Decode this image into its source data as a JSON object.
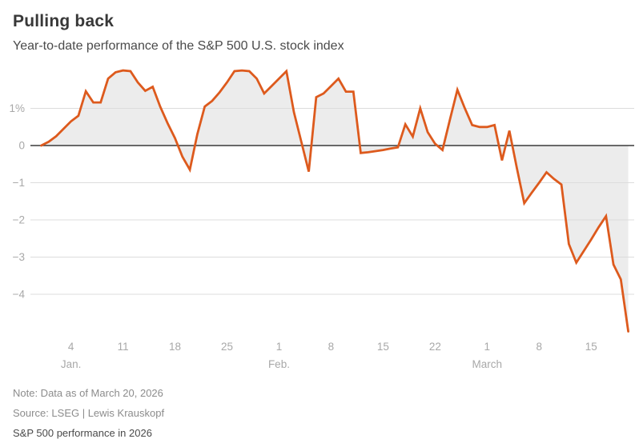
{
  "header": {
    "title": "Pulling back",
    "subtitle": "Year-to-date performance of the S&P 500 U.S. stock index"
  },
  "footer": {
    "note": "Note: Data as of March 20, 2026",
    "source": "Source: LSEG | Lewis Krauskopf",
    "tagline": "S&P 500 performance in 2026"
  },
  "colors": {
    "line": "#DD5A1D",
    "area_fill": "#ECECEC",
    "zero_axis": "#3a3a3a",
    "gridline": "#dcdcdc",
    "tick_label": "#a8a8a8",
    "title_text": "#383838",
    "note_text": "#8c8c8c"
  },
  "chart_data": {
    "type": "area",
    "title": "Pulling back",
    "subtitle": "Year-to-date performance of the S&P 500 U.S. stock index",
    "unit": "percent",
    "ylabel": "",
    "xlabel": "",
    "ylim": [
      -5.2,
      2.2
    ],
    "grid": true,
    "legend": "none",
    "y_ticks": [
      {
        "value": 1,
        "label": "1%"
      },
      {
        "value": 0,
        "label": "0"
      },
      {
        "value": -1,
        "label": "−1"
      },
      {
        "value": -2,
        "label": "−2"
      },
      {
        "value": -3,
        "label": "−3"
      },
      {
        "value": -4,
        "label": "−4"
      }
    ],
    "x_axis_note": "day index, 0 = Dec 31 2025 close, 79 = March 20 2026",
    "x_domain_days": [
      0,
      79
    ],
    "x_ticks": [
      {
        "day": 4,
        "label": "4"
      },
      {
        "day": 11,
        "label": "11"
      },
      {
        "day": 18,
        "label": "18"
      },
      {
        "day": 25,
        "label": "25"
      },
      {
        "day": 32,
        "label": "1"
      },
      {
        "day": 39,
        "label": "8"
      },
      {
        "day": 46,
        "label": "15"
      },
      {
        "day": 53,
        "label": "22"
      },
      {
        "day": 60,
        "label": "1"
      },
      {
        "day": 67,
        "label": "8"
      },
      {
        "day": 74,
        "label": "15"
      }
    ],
    "month_labels": [
      {
        "day": 4,
        "label": "Jan."
      },
      {
        "day": 32,
        "label": "Feb."
      },
      {
        "day": 60,
        "label": "March"
      }
    ],
    "series": [
      {
        "name": "S&P 500 year-to-date change (%)",
        "points": [
          [
            0,
            0
          ],
          [
            1,
            0.1
          ],
          [
            2,
            0.25
          ],
          [
            3,
            0.45
          ],
          [
            4,
            0.65
          ],
          [
            5,
            0.8
          ],
          [
            6,
            1.46
          ],
          [
            7,
            1.16
          ],
          [
            8,
            1.16
          ],
          [
            9,
            1.8
          ],
          [
            10,
            1.97
          ],
          [
            11,
            2.02
          ],
          [
            12,
            2.0
          ],
          [
            13,
            1.7
          ],
          [
            14,
            1.47
          ],
          [
            15,
            1.58
          ],
          [
            16,
            1.05
          ],
          [
            17,
            0.6
          ],
          [
            18,
            0.2
          ],
          [
            19,
            -0.3
          ],
          [
            20,
            -0.65
          ],
          [
            21,
            0.3
          ],
          [
            22,
            1.05
          ],
          [
            23,
            1.2
          ],
          [
            24,
            1.43
          ],
          [
            25,
            1.7
          ],
          [
            26,
            2.0
          ],
          [
            27,
            2.02
          ],
          [
            28,
            2.0
          ],
          [
            29,
            1.8
          ],
          [
            30,
            1.4
          ],
          [
            31,
            1.6
          ],
          [
            32,
            1.8
          ],
          [
            33,
            2.0
          ],
          [
            34,
            0.9
          ],
          [
            35,
            0.1
          ],
          [
            36,
            -0.7
          ],
          [
            37,
            1.3
          ],
          [
            38,
            1.4
          ],
          [
            39,
            1.6
          ],
          [
            40,
            1.8
          ],
          [
            41,
            1.45
          ],
          [
            42,
            1.45
          ],
          [
            43,
            -0.2
          ],
          [
            44,
            -0.18
          ],
          [
            45,
            -0.15
          ],
          [
            46,
            -0.12
          ],
          [
            47,
            -0.08
          ],
          [
            48,
            -0.05
          ],
          [
            49,
            0.57
          ],
          [
            50,
            0.24
          ],
          [
            51,
            1.0
          ],
          [
            52,
            0.36
          ],
          [
            53,
            0.05
          ],
          [
            54,
            -0.12
          ],
          [
            55,
            0.7
          ],
          [
            56,
            1.5
          ],
          [
            57,
            1.0
          ],
          [
            58,
            0.55
          ],
          [
            59,
            0.5
          ],
          [
            60,
            0.5
          ],
          [
            61,
            0.55
          ],
          [
            62,
            -0.4
          ],
          [
            63,
            0.4
          ],
          [
            64,
            -0.6
          ],
          [
            65,
            -1.55
          ],
          [
            66,
            -1.27
          ],
          [
            67,
            -1.0
          ],
          [
            68,
            -0.72
          ],
          [
            69,
            -0.9
          ],
          [
            70,
            -1.05
          ],
          [
            71,
            -2.65
          ],
          [
            72,
            -3.15
          ],
          [
            73,
            -2.84
          ],
          [
            74,
            -2.53
          ],
          [
            75,
            -2.2
          ],
          [
            76,
            -1.9
          ],
          [
            77,
            -3.2
          ],
          [
            78,
            -3.6
          ],
          [
            79,
            -5.0
          ]
        ]
      }
    ]
  }
}
